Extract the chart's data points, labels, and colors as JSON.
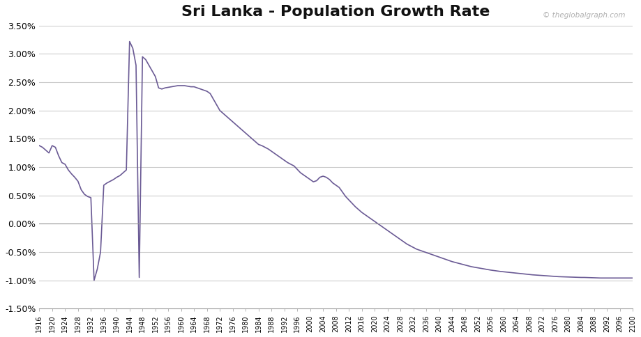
{
  "title": "Sri Lanka - Population Growth Rate",
  "watermark": "© theglobalgraph.com",
  "line_color": "#6b5b95",
  "bg_color": "#ffffff",
  "grid_color": "#cccccc",
  "ylim": [
    -0.015,
    0.035
  ],
  "yticks": [
    -0.015,
    -0.01,
    -0.005,
    0.0,
    0.005,
    0.01,
    0.015,
    0.02,
    0.025,
    0.03,
    0.035
  ],
  "xtick_step": 4,
  "years": [
    1916,
    1917,
    1918,
    1919,
    1920,
    1921,
    1922,
    1923,
    1924,
    1925,
    1926,
    1927,
    1928,
    1929,
    1930,
    1931,
    1932,
    1933,
    1934,
    1935,
    1936,
    1937,
    1938,
    1939,
    1940,
    1941,
    1942,
    1943,
    1944,
    1945,
    1946,
    1947,
    1948,
    1949,
    1950,
    1951,
    1952,
    1953,
    1954,
    1955,
    1956,
    1957,
    1958,
    1959,
    1960,
    1961,
    1962,
    1963,
    1964,
    1965,
    1966,
    1967,
    1968,
    1969,
    1970,
    1971,
    1972,
    1973,
    1974,
    1975,
    1976,
    1977,
    1978,
    1979,
    1980,
    1981,
    1982,
    1983,
    1984,
    1985,
    1986,
    1987,
    1988,
    1989,
    1990,
    1991,
    1992,
    1993,
    1994,
    1995,
    1996,
    1997,
    1998,
    1999,
    2000,
    2001,
    2002,
    2003,
    2004,
    2005,
    2006,
    2007,
    2008,
    2009,
    2010,
    2011,
    2012,
    2013,
    2014,
    2015,
    2016,
    2017,
    2018,
    2019,
    2020,
    2021,
    2022,
    2023,
    2024,
    2025,
    2026,
    2027,
    2028,
    2029,
    2030,
    2031,
    2032,
    2033,
    2034,
    2035,
    2036,
    2037,
    2038,
    2039,
    2040,
    2041,
    2042,
    2043,
    2044,
    2045,
    2046,
    2047,
    2048,
    2049,
    2050,
    2051,
    2052,
    2053,
    2054,
    2055,
    2056,
    2057,
    2058,
    2059,
    2060,
    2061,
    2062,
    2063,
    2064,
    2065,
    2066,
    2067,
    2068,
    2069,
    2070,
    2071,
    2072,
    2073,
    2074,
    2075,
    2076,
    2077,
    2078,
    2079,
    2080,
    2081,
    2082,
    2083,
    2084,
    2085,
    2086,
    2087,
    2088,
    2089,
    2090,
    2091,
    2092,
    2093,
    2094,
    2095,
    2096,
    2097,
    2098,
    2099,
    2100
  ],
  "values": [
    0.0138,
    0.0135,
    0.013,
    0.0125,
    0.0138,
    0.0135,
    0.012,
    0.0108,
    0.0105,
    0.0095,
    0.0088,
    0.0082,
    0.0075,
    0.006,
    0.0052,
    0.0048,
    0.0046,
    -0.01,
    -0.008,
    -0.005,
    0.0068,
    0.0072,
    0.0075,
    0.0078,
    0.0082,
    0.0085,
    0.009,
    0.0095,
    0.0322,
    0.031,
    0.028,
    -0.0095,
    0.0295,
    0.029,
    0.028,
    0.027,
    0.026,
    0.024,
    0.0238,
    0.024,
    0.0241,
    0.0242,
    0.0243,
    0.0244,
    0.0244,
    0.0244,
    0.0243,
    0.0242,
    0.0242,
    0.024,
    0.0238,
    0.0236,
    0.0234,
    0.023,
    0.022,
    0.021,
    0.02,
    0.0195,
    0.019,
    0.0185,
    0.018,
    0.0175,
    0.017,
    0.0165,
    0.016,
    0.0155,
    0.015,
    0.0145,
    0.014,
    0.0138,
    0.0135,
    0.0132,
    0.0128,
    0.0124,
    0.012,
    0.0116,
    0.0112,
    0.0108,
    0.0105,
    0.0102,
    0.0096,
    0.009,
    0.0086,
    0.0082,
    0.0078,
    0.0074,
    0.0076,
    0.0082,
    0.0084,
    0.0082,
    0.0078,
    0.0072,
    0.0068,
    0.0064,
    0.0056,
    0.0048,
    0.0042,
    0.0036,
    0.003,
    0.0025,
    0.002,
    0.0016,
    0.0012,
    0.0008,
    0.0004,
    0.0,
    -0.0004,
    -0.0008,
    -0.0012,
    -0.0016,
    -0.002,
    -0.0024,
    -0.0028,
    -0.0032,
    -0.0036,
    -0.0039,
    -0.0042,
    -0.0045,
    -0.0047,
    -0.0049,
    -0.0051,
    -0.0053,
    -0.0055,
    -0.0057,
    -0.0059,
    -0.0061,
    -0.0063,
    -0.0065,
    -0.0067,
    -0.00685,
    -0.007,
    -0.00715,
    -0.0073,
    -0.00745,
    -0.0076,
    -0.0077,
    -0.0078,
    -0.0079,
    -0.008,
    -0.0081,
    -0.0082,
    -0.00828,
    -0.00836,
    -0.00844,
    -0.0085,
    -0.00856,
    -0.00862,
    -0.00868,
    -0.00874,
    -0.0088,
    -0.00886,
    -0.00892,
    -0.00898,
    -0.00904,
    -0.00908,
    -0.00912,
    -0.00916,
    -0.0092,
    -0.00924,
    -0.00928,
    -0.00932,
    -0.00936,
    -0.00938,
    -0.0094,
    -0.00942,
    -0.00944,
    -0.00946,
    -0.00948,
    -0.0095,
    -0.0095,
    -0.00952,
    -0.00954,
    -0.00956,
    -0.00958,
    -0.0096,
    -0.0096,
    -0.0096,
    -0.0096,
    -0.0096,
    -0.0096,
    -0.0096,
    -0.0096,
    -0.0096,
    -0.0096,
    -0.0096
  ]
}
